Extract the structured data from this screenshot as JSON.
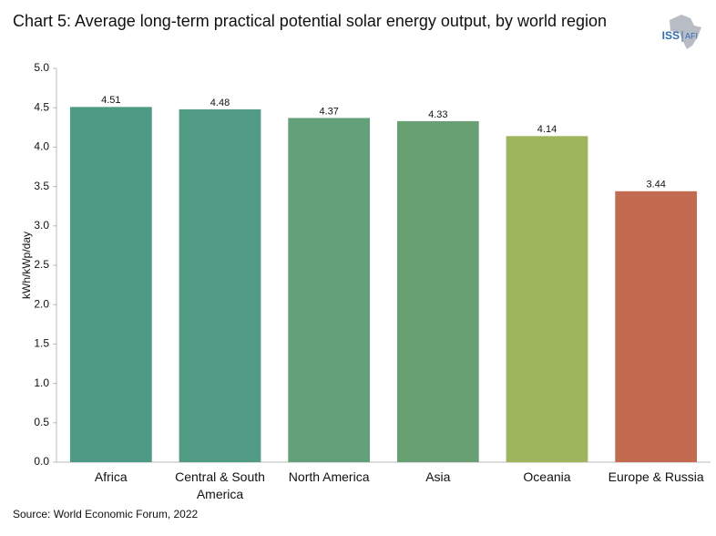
{
  "chart_data": {
    "type": "bar",
    "title": "Chart 5: Average long-term practical potential solar energy output, by world region",
    "y_label": "kWh/kWp/day",
    "source": "Source: World Economic Forum, 2022",
    "logo": {
      "left": "ISS",
      "right": "AFI"
    },
    "categories": [
      "Africa",
      "Central & South America",
      "North America",
      "Asia",
      "Oceania",
      "Europe & Russia"
    ],
    "values": [
      4.51,
      4.48,
      4.37,
      4.33,
      4.14,
      3.44
    ],
    "colors": [
      "#4f9a85",
      "#529b84",
      "#639f78",
      "#68a073",
      "#9db65d",
      "#c36b51"
    ],
    "ylim": [
      0,
      5
    ],
    "yticks": [
      {
        "value": 0,
        "label": "0.0"
      },
      0.5,
      {
        "value": 1,
        "label": "1.0"
      },
      1.5,
      {
        "value": 2,
        "label": "2.0"
      },
      2.5,
      {
        "value": 3,
        "label": "3.0"
      },
      3.5,
      {
        "value": 4,
        "label": "4.0"
      },
      4.5,
      {
        "value": 5,
        "label": "5.0"
      }
    ],
    "grid": false
  }
}
